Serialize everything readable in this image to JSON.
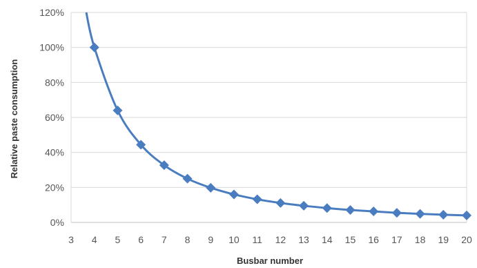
{
  "chart_data": {
    "type": "line",
    "title": "",
    "xlabel": "Busbar number",
    "ylabel": "Relative paste consumption",
    "xlim": [
      3,
      20
    ],
    "ylim": [
      0,
      1.2
    ],
    "x_ticks": [
      "3",
      "4",
      "5",
      "6",
      "7",
      "8",
      "9",
      "10",
      "11",
      "12",
      "13",
      "14",
      "15",
      "16",
      "17",
      "18",
      "19",
      "20"
    ],
    "y_ticks": [
      "0%",
      "20%",
      "40%",
      "60%",
      "80%",
      "100%",
      "120%"
    ],
    "grid": "horizontal",
    "legend": "none",
    "series": [
      {
        "color": "#4A7DC0",
        "marker": "diamond",
        "x": [
          4,
          5,
          6,
          7,
          8,
          9,
          10,
          11,
          12,
          13,
          14,
          15,
          16,
          17,
          18,
          19,
          20
        ],
        "y": [
          1.0,
          0.64,
          0.444,
          0.327,
          0.25,
          0.198,
          0.16,
          0.132,
          0.111,
          0.095,
          0.082,
          0.071,
          0.063,
          0.055,
          0.049,
          0.044,
          0.04
        ]
      }
    ]
  }
}
